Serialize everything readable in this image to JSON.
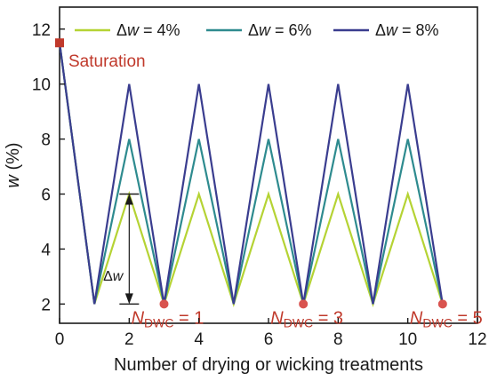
{
  "chart_data": {
    "type": "line",
    "xlabel": "Number of drying or wicking treatments",
    "ylabel_italic": "w",
    "ylabel_suffix": " (%)",
    "xlim": [
      0,
      12
    ],
    "ylim": [
      1.3,
      12.8
    ],
    "xticks": [
      0,
      2,
      4,
      6,
      8,
      10,
      12
    ],
    "yticks": [
      2,
      4,
      6,
      8,
      10,
      12
    ],
    "grid": false,
    "legend_position": "top",
    "series": [
      {
        "name": "Δw = 4%",
        "color": "#b5d334",
        "x": [
          0,
          1,
          2,
          3,
          4,
          5,
          6,
          7,
          8,
          9,
          10,
          11
        ],
        "y": [
          11.5,
          2,
          6,
          2,
          6,
          2,
          6,
          2,
          6,
          2,
          6,
          2
        ]
      },
      {
        "name": "Δw = 6%",
        "color": "#2e8b8f",
        "x": [
          0,
          1,
          2,
          3,
          4,
          5,
          6,
          7,
          8,
          9,
          10,
          11
        ],
        "y": [
          11.5,
          2,
          8,
          2,
          8,
          2,
          8,
          2,
          8,
          2,
          8,
          2
        ]
      },
      {
        "name": "Δw = 8%",
        "color": "#3a3d8f",
        "x": [
          0,
          1,
          2,
          3,
          4,
          5,
          6,
          7,
          8,
          9,
          10,
          11
        ],
        "y": [
          11.5,
          2,
          10,
          2,
          10,
          2,
          10,
          2,
          10,
          2,
          10,
          2
        ]
      }
    ],
    "saturation_point": {
      "x": 0,
      "y": 11.5,
      "label": "Saturation",
      "color": "#c0392b"
    },
    "ndwc_points": [
      {
        "x": 3,
        "y": 2,
        "value": "1"
      },
      {
        "x": 7,
        "y": 2,
        "value": "3"
      },
      {
        "x": 11,
        "y": 2,
        "value": "5"
      }
    ],
    "ndwc_label_main": "N",
    "ndwc_label_sub": "DWC",
    "delta_annotation": {
      "label": "Δw",
      "x": 2,
      "y_top": 6,
      "y_bottom": 2
    }
  }
}
